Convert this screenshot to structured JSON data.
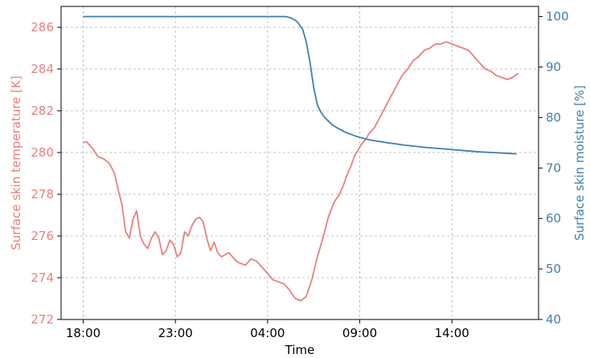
{
  "chart_data": {
    "type": "line",
    "xlabel": "Time",
    "ylabel_left": "Surface skin temperature [K]",
    "ylabel_right": "Surface skin moisture [%]",
    "x_unit": "hours since 18:00",
    "x_ticks": [
      {
        "value": 0,
        "label": "18:00"
      },
      {
        "value": 5,
        "label": "23:00"
      },
      {
        "value": 10,
        "label": "04:00"
      },
      {
        "value": 15,
        "label": "09:00"
      },
      {
        "value": 20,
        "label": "14:00"
      }
    ],
    "xlim": [
      -1.2,
      24.7
    ],
    "ylim_left": [
      272,
      287
    ],
    "ylim_right": [
      40,
      102
    ],
    "y_ticks_left": [
      272,
      274,
      276,
      278,
      280,
      282,
      284,
      286
    ],
    "y_ticks_right": [
      40,
      50,
      60,
      70,
      80,
      90,
      100
    ],
    "grid": true,
    "colors": {
      "left": "#e8807f",
      "right": "#3f7fb0"
    },
    "series": [
      {
        "axis": "left",
        "x": [
          0,
          0.2,
          0.5,
          0.8,
          1.1,
          1.4,
          1.7,
          1.9,
          2.1,
          2.3,
          2.5,
          2.7,
          2.9,
          3.1,
          3.3,
          3.5,
          3.7,
          3.9,
          4.1,
          4.3,
          4.5,
          4.7,
          4.9,
          5.1,
          5.3,
          5.5,
          5.7,
          5.9,
          6.1,
          6.3,
          6.5,
          6.7,
          6.9,
          7.1,
          7.3,
          7.5,
          7.7,
          7.9,
          8.1,
          8.3,
          8.5,
          8.8,
          9.1,
          9.4,
          9.7,
          10.0,
          10.3,
          10.6,
          10.9,
          11.2,
          11.5,
          11.8,
          12.1,
          12.4,
          12.7,
          13.0,
          13.3,
          13.6,
          13.9,
          14.1,
          14.3,
          14.5,
          14.7,
          14.9,
          15.1,
          15.3,
          15.5,
          15.8,
          16.1,
          16.4,
          16.7,
          17.0,
          17.3,
          17.6,
          17.9,
          18.2,
          18.5,
          18.8,
          19.1,
          19.4,
          19.7,
          20.0,
          20.3,
          20.6,
          20.9,
          21.2,
          21.5,
          21.8,
          22.1,
          22.4,
          22.7,
          23.0,
          23.3,
          23.6
        ],
        "y": [
          280.5,
          280.5,
          280.2,
          279.8,
          279.7,
          279.5,
          279.0,
          278.2,
          277.5,
          276.2,
          275.9,
          276.8,
          277.2,
          276.0,
          275.6,
          275.4,
          275.9,
          276.2,
          275.9,
          275.1,
          275.3,
          275.8,
          275.6,
          275.0,
          275.2,
          276.2,
          276.0,
          276.5,
          276.8,
          276.9,
          276.7,
          275.9,
          275.3,
          275.7,
          275.2,
          275.0,
          275.1,
          275.2,
          275.0,
          274.8,
          274.7,
          274.6,
          274.9,
          274.8,
          274.5,
          274.2,
          273.9,
          273.8,
          273.7,
          273.4,
          273.0,
          272.9,
          273.1,
          273.9,
          275.0,
          275.9,
          276.9,
          277.6,
          278.0,
          278.4,
          278.9,
          279.3,
          279.8,
          280.1,
          280.4,
          280.6,
          280.9,
          281.2,
          281.7,
          282.2,
          282.7,
          283.2,
          283.7,
          284.0,
          284.4,
          284.6,
          284.9,
          285.0,
          285.2,
          285.2,
          285.3,
          285.2,
          285.1,
          285.0,
          284.9,
          284.6,
          284.3,
          284.0,
          283.9,
          283.7,
          283.6,
          283.5,
          283.6,
          283.8
        ]
      },
      {
        "axis": "right",
        "x": [
          0,
          2,
          4,
          6,
          8,
          10,
          11,
          11.3,
          11.6,
          11.9,
          12.1,
          12.3,
          12.5,
          12.7,
          12.9,
          13.1,
          13.3,
          13.5,
          13.8,
          14.2,
          14.8,
          15.5,
          16.5,
          17.5,
          18.5,
          19.5,
          20.5,
          21.5,
          22.5,
          23.5
        ],
        "y": [
          100,
          100,
          100,
          100,
          100,
          100,
          100,
          99.7,
          99.0,
          97.5,
          95.0,
          91.0,
          86.0,
          82.5,
          81.0,
          80.0,
          79.3,
          78.6,
          77.9,
          77.1,
          76.3,
          75.6,
          75.0,
          74.5,
          74.1,
          73.8,
          73.5,
          73.2,
          73.0,
          72.8
        ]
      }
    ]
  }
}
